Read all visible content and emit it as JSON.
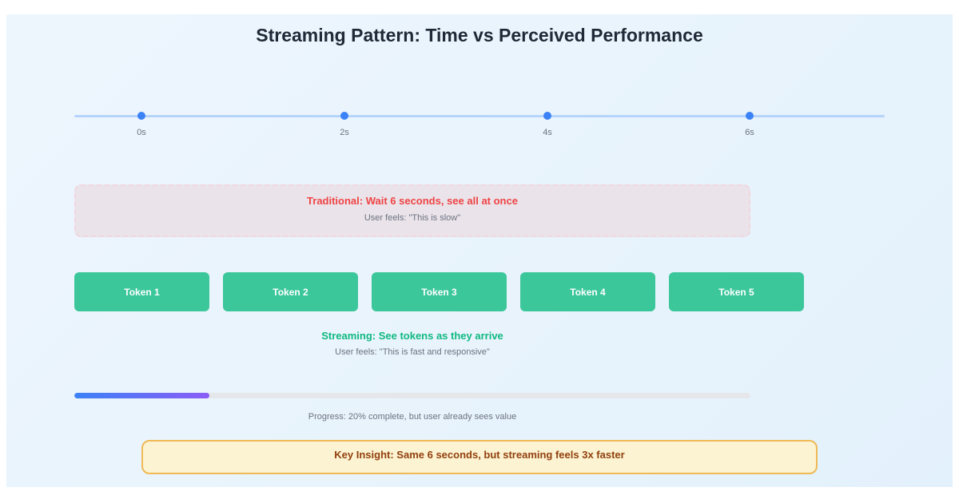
{
  "title": "Streaming Pattern: Time vs Perceived Performance",
  "timeline": {
    "ticks": [
      "0s",
      "2s",
      "4s",
      "6s"
    ]
  },
  "traditional": {
    "heading": "Traditional: Wait 6 seconds, see all at once",
    "feeling": "User feels: \"This is slow\""
  },
  "tokens": [
    "Token 1",
    "Token 2",
    "Token 3",
    "Token 4",
    "Token 5"
  ],
  "streaming": {
    "heading": "Streaming: See tokens as they arrive",
    "feeling": "User feels: \"This is fast and responsive\""
  },
  "progress": {
    "percent": 20,
    "label": "Progress: 20% complete, but user already sees value"
  },
  "insight": "Key Insight: Same 6 seconds, but streaming feels 3x faster",
  "colors": {
    "accent": "#3b82f6",
    "traditional": "#ef4444",
    "token": "#3cc79b",
    "streaming": "#10b981",
    "insight_text": "#92400e"
  }
}
